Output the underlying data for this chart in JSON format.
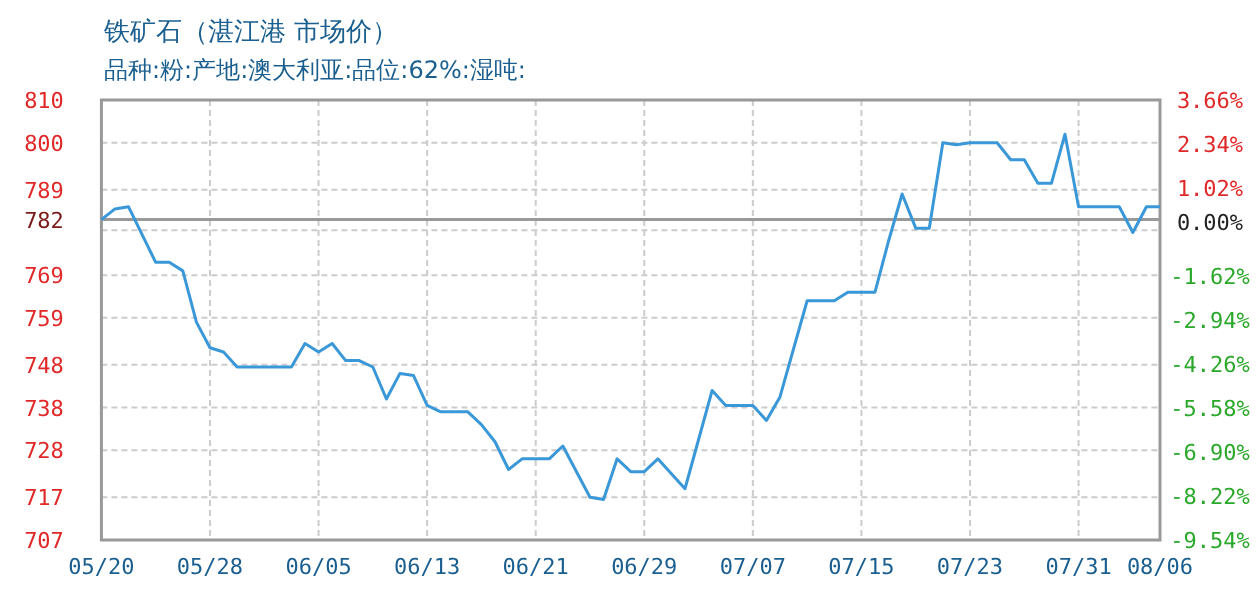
{
  "chart_data": {
    "type": "line",
    "title": "铁矿石（湛江港 市场价）",
    "subtitle": "品种:粉:产地:澳大利亚:品位:62%:湿吨:",
    "x": [
      "--05-20",
      "--05-21",
      "--05-22",
      "--05-24",
      "--05-25",
      "--05-26",
      "--05-27",
      "--05-28",
      "--05-29",
      "--05-30",
      "--06-03",
      "--06-04",
      "--06-05",
      "--06-06",
      "--06-07",
      "--06-08",
      "--06-09",
      "--06-10",
      "--06-11",
      "--06-12",
      "--06-13",
      "--06-14",
      "--06-16",
      "--06-17",
      "--06-18",
      "--06-19",
      "--06-20",
      "--06-22",
      "--06-23",
      "--06-25",
      "--06-26",
      "--06-27",
      "--06-28",
      "--06-29",
      "--06-30",
      "--07-02",
      "--07-04",
      "--07-05",
      "--07-07",
      "--07-08",
      "--07-09",
      "--07-11",
      "--07-13",
      "--07-14",
      "--07-16",
      "--07-17",
      "--07-18",
      "--07-19",
      "--07-20",
      "--07-21",
      "--07-22",
      "--07-23",
      "--07-25",
      "--07-26",
      "--07-27",
      "--07-28",
      "--07-29",
      "--07-30",
      "--07-31",
      "--08-03",
      "--08-04",
      "--08-05",
      "--08-06"
    ],
    "series": [
      {
        "color": "#3a98d8",
        "values": [
          782,
          784.5,
          785,
          772,
          772,
          770,
          758,
          752,
          751,
          747.5,
          747.5,
          753,
          751,
          753,
          749,
          749,
          747.5,
          740,
          746,
          745.5,
          738.5,
          737,
          737,
          734,
          730,
          723.5,
          726,
          726,
          729,
          717,
          716.5,
          726,
          723,
          723,
          726,
          719,
          742,
          738.5,
          738.5,
          735,
          740.5,
          763,
          763,
          765,
          765,
          777,
          788,
          780,
          780,
          800,
          799.5,
          800,
          800,
          796,
          796,
          790.5,
          790.5,
          802,
          785,
          785,
          779,
          785,
          785
        ]
      }
    ],
    "xlim": [
      "--05-20",
      "--08-06"
    ],
    "xticks": [
      {
        "value": "--05-20",
        "label": "05/20"
      },
      {
        "value": "--05-28",
        "label": "05/28"
      },
      {
        "value": "--06-05",
        "label": "06/05"
      },
      {
        "value": "--06-13",
        "label": "06/13"
      },
      {
        "value": "--06-21",
        "label": "06/21"
      },
      {
        "value": "--06-29",
        "label": "06/29"
      },
      {
        "value": "--07-07",
        "label": "07/07"
      },
      {
        "value": "--07-15",
        "label": "07/15"
      },
      {
        "value": "--07-23",
        "label": "07/23"
      },
      {
        "value": "--07-31",
        "label": "07/31"
      },
      {
        "value": "--08-06",
        "label": "08/06"
      }
    ],
    "ylim": [
      707,
      810
    ],
    "yticks": [
      810,
      800,
      789,
      782,
      {
        "value": 779.5,
        "label": null
      },
      769,
      759,
      748,
      738,
      728,
      717,
      707
    ],
    "y2lim": [
      -9.54,
      3.66
    ],
    "y2ticks": [
      {
        "value": 3.66,
        "label": "3.66%"
      },
      {
        "value": 2.34,
        "label": "2.34%"
      },
      {
        "value": 1.02,
        "label": "1.02%"
      },
      {
        "value": 0,
        "label": "0.00%"
      },
      {
        "value": -1.62,
        "label": "-1.62%"
      },
      {
        "value": -2.94,
        "label": "-2.94%"
      },
      {
        "value": -4.26,
        "label": "-4.26%"
      },
      {
        "value": -5.58,
        "label": "-5.58%"
      },
      {
        "value": -6.9,
        "label": "-6.90%"
      },
      {
        "value": -8.22,
        "label": "-8.22%"
      },
      {
        "value": -9.54,
        "label": "-9.54%"
      }
    ],
    "ref_lines": [
      {
        "axis": "y",
        "value": 782,
        "color": "#999999"
      }
    ],
    "grid": true
  }
}
